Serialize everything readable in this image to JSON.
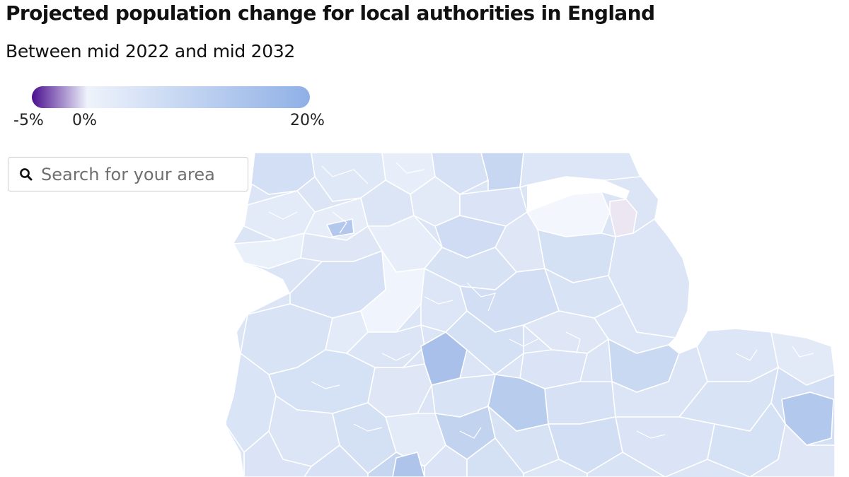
{
  "header": {
    "title": "Projected population change for local authorities in England",
    "subtitle": "Between mid 2022 and mid 2032"
  },
  "legend": {
    "min_label": "-5%",
    "zero_label": "0%",
    "max_label": "20%",
    "min_value": -5,
    "max_value": 20,
    "colors": {
      "negative_end": "#4b0f8f",
      "zero": "#eef3fb",
      "positive_end": "#8fb0e6"
    }
  },
  "search": {
    "placeholder": "Search for your area",
    "value": "",
    "icon": "search-icon"
  },
  "map": {
    "region": "England",
    "coastline_color": "#ffffff",
    "sea_color": "#ffffff",
    "border_color": "#ffffff",
    "highlighted_negative_area_color": "#ece6f3"
  }
}
